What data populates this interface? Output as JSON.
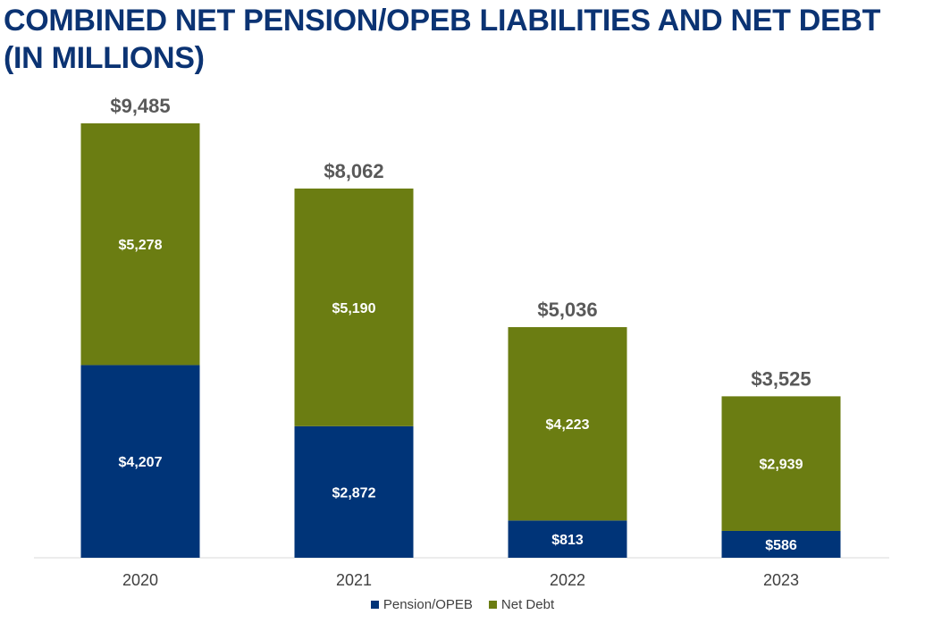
{
  "title_line1": "COMBINED NET PENSION/OPEB LIABILITIES AND NET DEBT",
  "title_line2": "(IN MILLIONS)",
  "colors": {
    "pension": "#003478",
    "net_debt": "#6b7d12",
    "title": "#0b3373",
    "total_label": "#595959",
    "axis_text": "#404040"
  },
  "chart_data": {
    "type": "bar",
    "stacked": true,
    "title": "COMBINED NET PENSION/OPEB LIABILITIES AND NET DEBT (IN MILLIONS)",
    "categories": [
      "2020",
      "2021",
      "2022",
      "2023"
    ],
    "series": [
      {
        "name": "Pension/OPEB",
        "values": [
          4207,
          2872,
          813,
          586
        ],
        "labels": [
          "$4,207",
          "$2,872",
          "$813",
          "$586"
        ]
      },
      {
        "name": "Net Debt",
        "values": [
          5278,
          5190,
          4223,
          2939
        ],
        "labels": [
          "$5,278",
          "$5,190",
          "$4,223",
          "$2,939"
        ]
      }
    ],
    "totals": [
      9485,
      8062,
      5036,
      3525
    ],
    "total_labels": [
      "$9,485",
      "$8,062",
      "$5,036",
      "$3,525"
    ],
    "ylim": [
      0,
      9485
    ],
    "grid": false,
    "legend_position": "bottom"
  }
}
